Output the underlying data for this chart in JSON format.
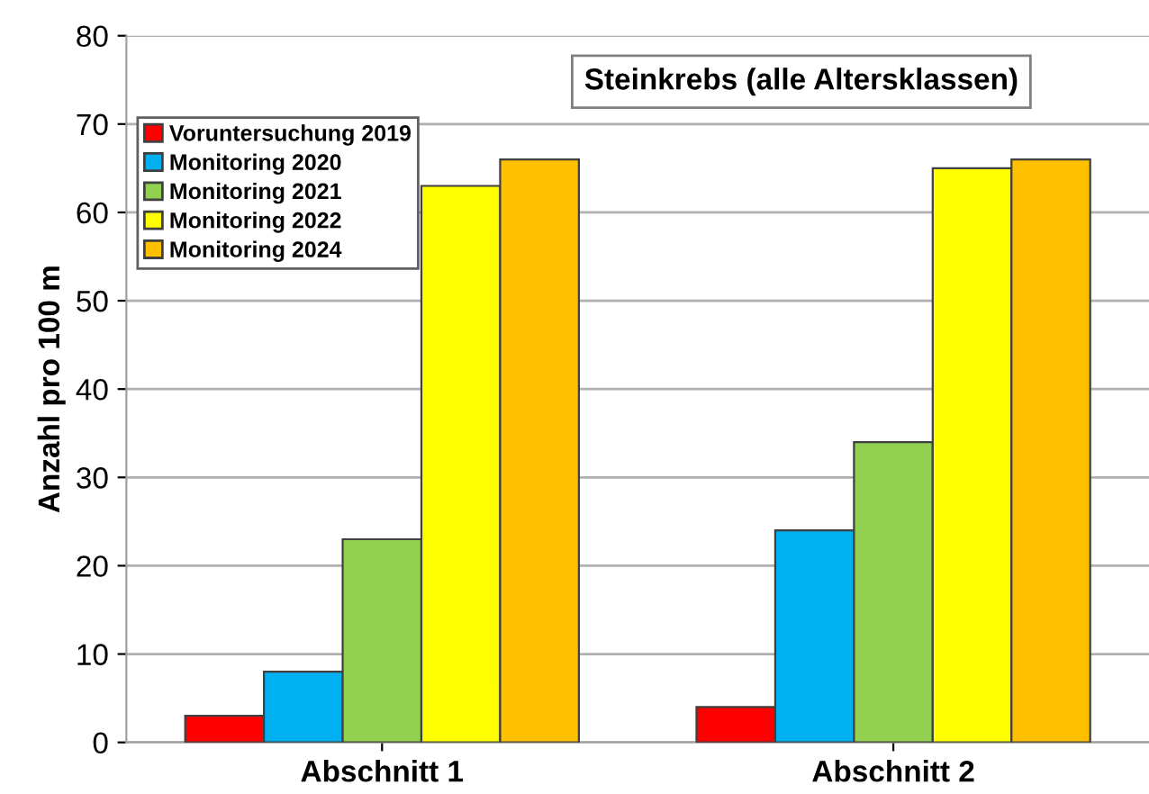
{
  "chart_data": {
    "type": "bar",
    "title": "Steinkrebs (alle Altersklassen)",
    "ylabel": "Anzahl pro 100 m",
    "categories": [
      "Abschnitt 1",
      "Abschnitt 2"
    ],
    "series": [
      {
        "name": "Voruntersuchung 2019",
        "color": "#ff0000",
        "values": [
          3,
          4
        ]
      },
      {
        "name": "Monitoring 2020",
        "color": "#00b0f0",
        "values": [
          8,
          24
        ]
      },
      {
        "name": "Monitoring 2021",
        "color": "#92d050",
        "values": [
          23,
          34
        ]
      },
      {
        "name": "Monitoring 2022",
        "color": "#ffff00",
        "values": [
          63,
          65
        ]
      },
      {
        "name": "Monitoring 2024",
        "color": "#ffc000",
        "values": [
          66,
          66
        ]
      }
    ],
    "ylim": [
      0,
      80
    ],
    "yticks": [
      0,
      10,
      20,
      30,
      40,
      50,
      60,
      70,
      80
    ],
    "grid": "y",
    "legend": "top left"
  }
}
